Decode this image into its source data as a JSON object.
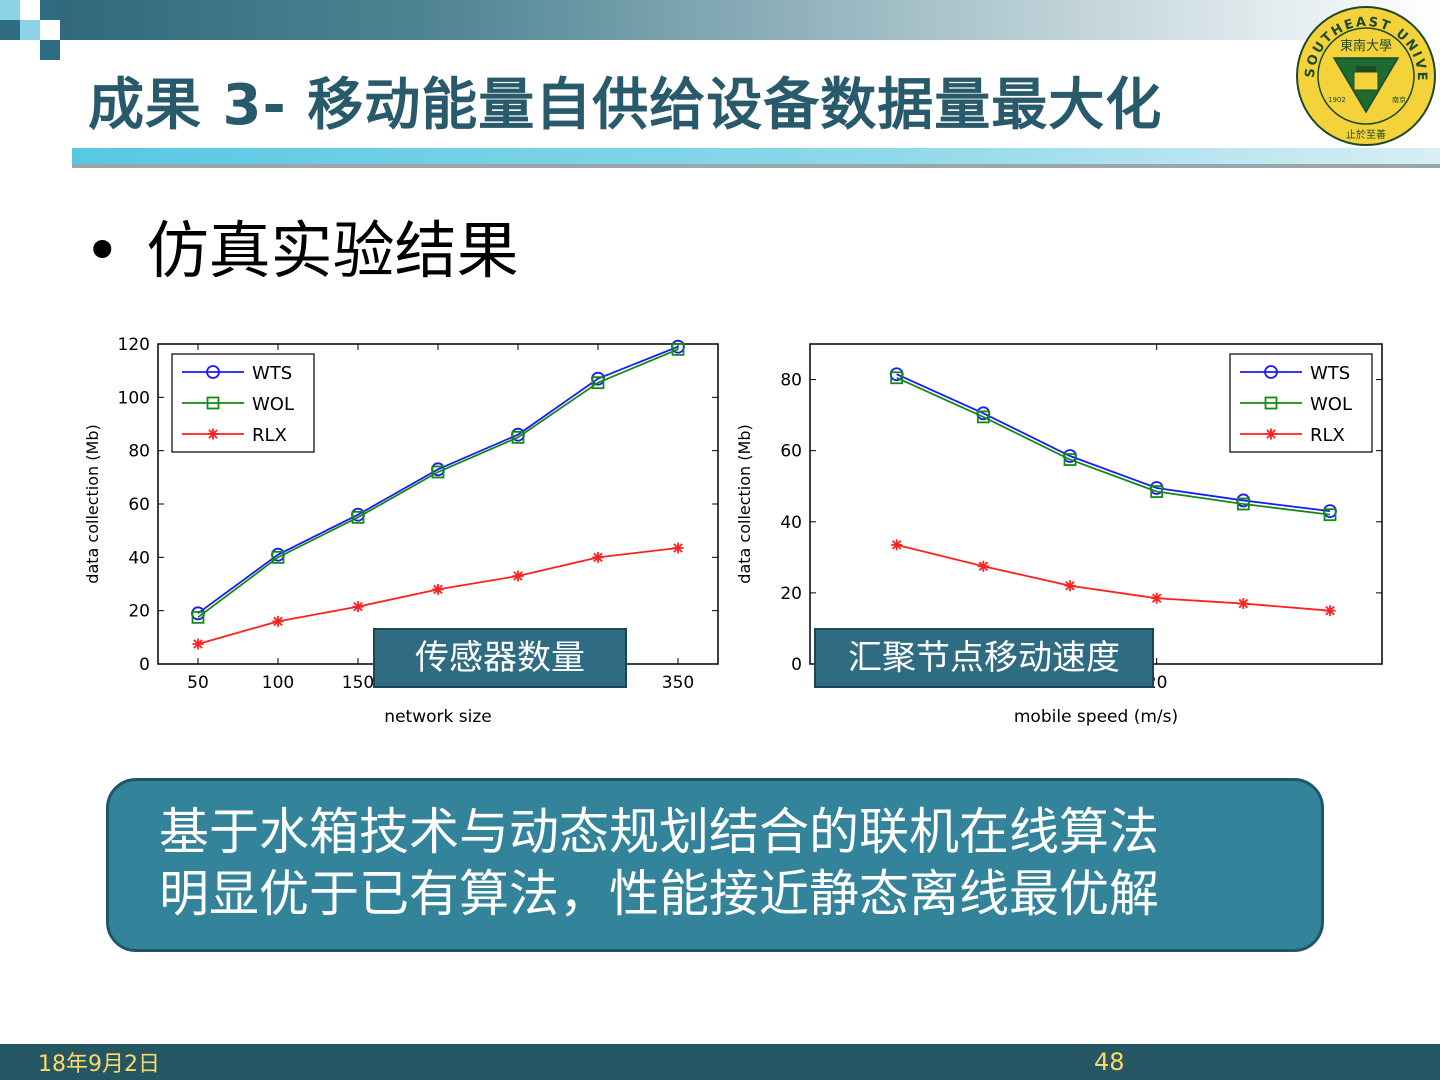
{
  "slide": {
    "title": "成果 3- 移动能量自供给设备数据量最大化",
    "bullet": "仿真实验结果",
    "left_overlay": "传感器数量",
    "right_overlay": "汇聚节点移动速度",
    "conclusion_lines": [
      "基于水箱技术与动态规划结合的联机在线算法",
      "明显优于已有算法，性能接近静态离线最优解"
    ],
    "footer_date": "18年9月2日",
    "page_number": "48"
  },
  "logo": {
    "ring_text": "SOUTHEAST UNIVERSITY",
    "inner_text": "東南大學",
    "year": "1902",
    "city": "南京",
    "motto": "止於至善"
  },
  "colors": {
    "title": "#285a6b",
    "accent": "#33839a",
    "WTS": "#1a1aff",
    "WOL": "#138a13",
    "RLX": "#ff2020"
  },
  "chart_data": [
    {
      "type": "line",
      "xlabel": "network size",
      "ylabel": "data collection (Mb)",
      "x": [
        50,
        100,
        150,
        200,
        250,
        300,
        350
      ],
      "xticks": [
        50,
        100,
        150,
        200,
        250,
        300,
        350
      ],
      "xlim": [
        25,
        375
      ],
      "ylim": [
        0,
        120
      ],
      "yticks": [
        0,
        20,
        40,
        60,
        80,
        100,
        120
      ],
      "legend_position": "top-left",
      "series": [
        {
          "name": "WTS",
          "marker": "circle",
          "values": [
            19,
            41,
            56,
            73,
            86,
            107,
            119
          ]
        },
        {
          "name": "WOL",
          "marker": "square",
          "values": [
            17.5,
            40,
            55,
            72,
            85,
            105.5,
            118
          ]
        },
        {
          "name": "RLX",
          "marker": "star",
          "values": [
            7.5,
            16,
            21.5,
            28,
            33,
            40,
            43.5
          ]
        }
      ]
    },
    {
      "type": "line",
      "xlabel": "mobile speed (m/s)",
      "ylabel": "data collection (Mb)",
      "x": [
        5,
        10,
        15,
        20,
        25,
        30
      ],
      "xlim": [
        0,
        33
      ],
      "xticks": [
        20
      ],
      "ylim": [
        0,
        90
      ],
      "yticks": [
        0,
        20,
        40,
        60,
        80
      ],
      "legend_position": "top-right",
      "series": [
        {
          "name": "WTS",
          "marker": "circle",
          "values": [
            81.5,
            70.5,
            58.5,
            49.5,
            46,
            43
          ]
        },
        {
          "name": "WOL",
          "marker": "square",
          "values": [
            80.5,
            69.5,
            57.5,
            48.5,
            45,
            42
          ]
        },
        {
          "name": "RLX",
          "marker": "star",
          "values": [
            33.5,
            27.5,
            22,
            18.5,
            17,
            15
          ]
        }
      ]
    }
  ]
}
